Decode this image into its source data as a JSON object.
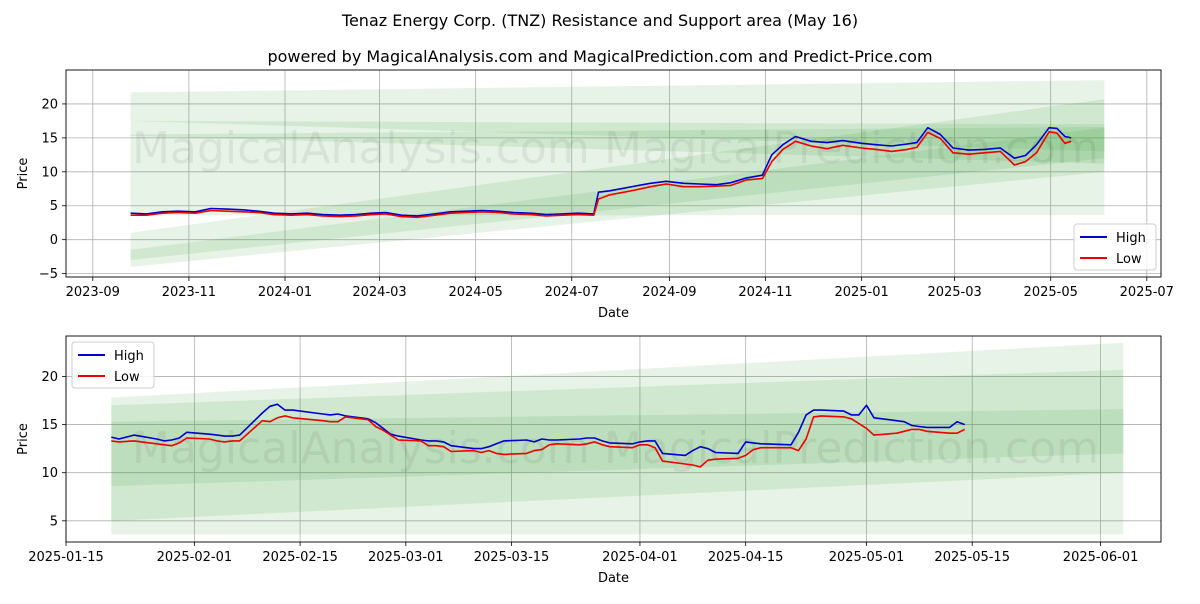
{
  "figure": {
    "title": "Tenaz Energy Corp. (TNZ) Resistance and Support area (May 16)",
    "subtitle": "powered by MagicalAnalysis.com and MagicalPrediction.com and Predict-Price.com",
    "watermarks": [
      "MagicalAnalysis.com",
      "MagicalPrediction.com"
    ]
  },
  "colors": {
    "high": "#0000cc",
    "low": "#ee0000",
    "band": "#2e9b2e",
    "grid": "#b0b0b0"
  },
  "chart_data": [
    {
      "type": "line",
      "panel": "full-history",
      "xlabel": "Date",
      "ylabel": "Price",
      "xlim": [
        "2023-08-15",
        "2025-07-10"
      ],
      "ylim": [
        -5.5,
        25
      ],
      "grid": true,
      "legend": "lower right",
      "xticks": [
        "2023-09",
        "2023-11",
        "2024-01",
        "2024-03",
        "2024-05",
        "2024-07",
        "2024-09",
        "2024-11",
        "2025-01",
        "2025-03",
        "2025-05",
        "2025-07"
      ],
      "yticks": [
        -5,
        0,
        5,
        10,
        15,
        20
      ],
      "series": [
        {
          "name": "High",
          "x": [
            "2023-09-25",
            "2023-10-05",
            "2023-10-15",
            "2023-10-25",
            "2023-11-05",
            "2023-11-15",
            "2023-11-25",
            "2023-12-05",
            "2023-12-15",
            "2023-12-25",
            "2024-01-05",
            "2024-01-15",
            "2024-01-25",
            "2024-02-05",
            "2024-02-15",
            "2024-02-25",
            "2024-03-05",
            "2024-03-15",
            "2024-03-25",
            "2024-04-05",
            "2024-04-15",
            "2024-04-25",
            "2024-05-05",
            "2024-05-15",
            "2024-05-25",
            "2024-06-05",
            "2024-06-15",
            "2024-06-25",
            "2024-07-05",
            "2024-07-15",
            "2024-07-18",
            "2024-07-25",
            "2024-08-01",
            "2024-08-10",
            "2024-08-20",
            "2024-08-30",
            "2024-09-10",
            "2024-09-20",
            "2024-10-01",
            "2024-10-10",
            "2024-10-20",
            "2024-10-30",
            "2024-11-05",
            "2024-11-12",
            "2024-11-20",
            "2024-11-30",
            "2024-12-10",
            "2024-12-20",
            "2025-01-01",
            "2025-01-10",
            "2025-01-20",
            "2025-01-30",
            "2025-02-05",
            "2025-02-12",
            "2025-02-20",
            "2025-02-28",
            "2025-03-10",
            "2025-03-20",
            "2025-03-30",
            "2025-04-08",
            "2025-04-15",
            "2025-04-22",
            "2025-04-30",
            "2025-05-05",
            "2025-05-10",
            "2025-05-14"
          ],
          "values": [
            3.9,
            3.8,
            4.1,
            4.2,
            4.1,
            4.6,
            4.5,
            4.4,
            4.2,
            3.9,
            3.8,
            3.9,
            3.7,
            3.6,
            3.7,
            3.9,
            4.0,
            3.6,
            3.5,
            3.8,
            4.1,
            4.2,
            4.3,
            4.2,
            4.0,
            3.9,
            3.7,
            3.8,
            3.9,
            3.8,
            7.0,
            7.2,
            7.5,
            7.9,
            8.3,
            8.6,
            8.3,
            8.2,
            8.1,
            8.4,
            9.1,
            9.5,
            12.5,
            14.0,
            15.2,
            14.5,
            14.3,
            14.6,
            14.2,
            14.0,
            13.8,
            14.1,
            14.3,
            16.5,
            15.5,
            13.5,
            13.2,
            13.3,
            13.5,
            12.0,
            12.4,
            14.0,
            16.5,
            16.4,
            15.2,
            15.0
          ]
        },
        {
          "name": "Low",
          "x": [
            "2023-09-25",
            "2023-10-05",
            "2023-10-15",
            "2023-10-25",
            "2023-11-05",
            "2023-11-15",
            "2023-11-25",
            "2023-12-05",
            "2023-12-15",
            "2023-12-25",
            "2024-01-05",
            "2024-01-15",
            "2024-01-25",
            "2024-02-05",
            "2024-02-15",
            "2024-02-25",
            "2024-03-05",
            "2024-03-15",
            "2024-03-25",
            "2024-04-05",
            "2024-04-15",
            "2024-04-25",
            "2024-05-05",
            "2024-05-15",
            "2024-05-25",
            "2024-06-05",
            "2024-06-15",
            "2024-06-25",
            "2024-07-05",
            "2024-07-15",
            "2024-07-18",
            "2024-07-25",
            "2024-08-01",
            "2024-08-10",
            "2024-08-20",
            "2024-08-30",
            "2024-09-10",
            "2024-09-20",
            "2024-10-01",
            "2024-10-10",
            "2024-10-20",
            "2024-10-30",
            "2024-11-05",
            "2024-11-12",
            "2024-11-20",
            "2024-11-30",
            "2024-12-10",
            "2024-12-20",
            "2025-01-01",
            "2025-01-10",
            "2025-01-20",
            "2025-01-30",
            "2025-02-05",
            "2025-02-12",
            "2025-02-20",
            "2025-02-28",
            "2025-03-10",
            "2025-03-20",
            "2025-03-30",
            "2025-04-08",
            "2025-04-15",
            "2025-04-22",
            "2025-04-30",
            "2025-05-05",
            "2025-05-10",
            "2025-05-14"
          ],
          "values": [
            3.6,
            3.6,
            3.9,
            4.0,
            3.9,
            4.3,
            4.2,
            4.1,
            4.0,
            3.7,
            3.6,
            3.7,
            3.5,
            3.4,
            3.5,
            3.7,
            3.8,
            3.4,
            3.3,
            3.6,
            3.9,
            4.0,
            4.1,
            4.0,
            3.8,
            3.7,
            3.5,
            3.6,
            3.7,
            3.6,
            6.0,
            6.6,
            6.9,
            7.3,
            7.8,
            8.2,
            7.8,
            7.8,
            7.9,
            8.0,
            8.8,
            9.0,
            11.5,
            13.3,
            14.5,
            13.8,
            13.4,
            13.9,
            13.5,
            13.3,
            13.0,
            13.3,
            13.6,
            15.8,
            14.9,
            12.8,
            12.6,
            12.8,
            13.0,
            11.0,
            11.5,
            12.8,
            15.9,
            15.7,
            14.2,
            14.5
          ]
        }
      ],
      "bands": [
        {
          "x": [
            "2023-09-25",
            "2025-06-04"
          ],
          "lower": [
            -4.0,
            10.0
          ],
          "upper": [
            1.0,
            20.7
          ]
        },
        {
          "x": [
            "2023-09-25",
            "2025-06-04"
          ],
          "lower": [
            15.3,
            11.2
          ],
          "upper": [
            21.7,
            23.5
          ]
        },
        {
          "x": [
            "2023-09-25",
            "2025-06-04"
          ],
          "lower": [
            3.6,
            3.6
          ],
          "upper": [
            15.5,
            16.6
          ]
        },
        {
          "x": [
            "2023-09-25",
            "2025-06-04"
          ],
          "lower": [
            -3.0,
            12.0
          ],
          "upper": [
            -1.5,
            16.5
          ]
        },
        {
          "x": [
            "2023-09-25",
            "2025-06-04"
          ],
          "lower": [
            17.5,
            13.0
          ],
          "upper": [
            17.5,
            17.0
          ]
        }
      ]
    },
    {
      "type": "line",
      "panel": "recent",
      "xlabel": "Date",
      "ylabel": "Price",
      "xlim": [
        "2025-01-15",
        "2025-06-09"
      ],
      "ylim": [
        2.8,
        24.2
      ],
      "grid": true,
      "legend": "upper left",
      "xticks": [
        "2025-01-15",
        "2025-02-01",
        "2025-02-15",
        "2025-03-01",
        "2025-03-15",
        "2025-04-01",
        "2025-04-15",
        "2025-05-01",
        "2025-05-15",
        "2025-06-01"
      ],
      "yticks": [
        5,
        10,
        15,
        20
      ],
      "series": [
        {
          "name": "High",
          "x": [
            "2025-01-21",
            "2025-01-22",
            "2025-01-24",
            "2025-01-27",
            "2025-01-28",
            "2025-01-29",
            "2025-01-30",
            "2025-01-31",
            "2025-02-03",
            "2025-02-04",
            "2025-02-05",
            "2025-02-06",
            "2025-02-07",
            "2025-02-10",
            "2025-02-11",
            "2025-02-12",
            "2025-02-13",
            "2025-02-14",
            "2025-02-18",
            "2025-02-19",
            "2025-02-20",
            "2025-02-21",
            "2025-02-24",
            "2025-02-25",
            "2025-02-26",
            "2025-02-27",
            "2025-02-28",
            "2025-03-03",
            "2025-03-04",
            "2025-03-05",
            "2025-03-06",
            "2025-03-07",
            "2025-03-10",
            "2025-03-11",
            "2025-03-12",
            "2025-03-13",
            "2025-03-14",
            "2025-03-17",
            "2025-03-18",
            "2025-03-19",
            "2025-03-20",
            "2025-03-21",
            "2025-03-24",
            "2025-03-25",
            "2025-03-26",
            "2025-03-27",
            "2025-03-28",
            "2025-03-31",
            "2025-04-01",
            "2025-04-02",
            "2025-04-03",
            "2025-04-04",
            "2025-04-07",
            "2025-04-08",
            "2025-04-09",
            "2025-04-10",
            "2025-04-11",
            "2025-04-14",
            "2025-04-15",
            "2025-04-16",
            "2025-04-17",
            "2025-04-21",
            "2025-04-22",
            "2025-04-23",
            "2025-04-24",
            "2025-04-25",
            "2025-04-28",
            "2025-04-29",
            "2025-04-30",
            "2025-05-01",
            "2025-05-02",
            "2025-05-05",
            "2025-05-06",
            "2025-05-07",
            "2025-05-08",
            "2025-05-09",
            "2025-05-12",
            "2025-05-13",
            "2025-05-14"
          ],
          "values": [
            13.7,
            13.5,
            13.9,
            13.5,
            13.3,
            13.4,
            13.6,
            14.2,
            14.0,
            13.9,
            13.8,
            13.8,
            13.9,
            16.2,
            16.9,
            17.1,
            16.5,
            16.5,
            16.1,
            16.0,
            16.1,
            15.9,
            15.6,
            15.2,
            14.6,
            14.0,
            13.8,
            13.4,
            13.3,
            13.3,
            13.2,
            12.8,
            12.5,
            12.5,
            12.7,
            13.0,
            13.3,
            13.4,
            13.2,
            13.5,
            13.4,
            13.4,
            13.5,
            13.6,
            13.6,
            13.3,
            13.1,
            13.0,
            13.2,
            13.3,
            13.3,
            12.0,
            11.8,
            12.3,
            12.7,
            12.5,
            12.1,
            12.0,
            13.2,
            13.1,
            13.0,
            12.9,
            14.2,
            16.0,
            16.5,
            16.5,
            16.4,
            16.0,
            16.0,
            17.0,
            15.7,
            15.4,
            15.3,
            14.9,
            14.8,
            14.7,
            14.7,
            15.3,
            15.0
          ]
        },
        {
          "name": "Low",
          "x": [
            "2025-01-21",
            "2025-01-22",
            "2025-01-24",
            "2025-01-27",
            "2025-01-28",
            "2025-01-29",
            "2025-01-30",
            "2025-01-31",
            "2025-02-03",
            "2025-02-04",
            "2025-02-05",
            "2025-02-06",
            "2025-02-07",
            "2025-02-10",
            "2025-02-11",
            "2025-02-12",
            "2025-02-13",
            "2025-02-14",
            "2025-02-18",
            "2025-02-19",
            "2025-02-20",
            "2025-02-21",
            "2025-02-24",
            "2025-02-25",
            "2025-02-26",
            "2025-02-27",
            "2025-02-28",
            "2025-03-03",
            "2025-03-04",
            "2025-03-05",
            "2025-03-06",
            "2025-03-07",
            "2025-03-10",
            "2025-03-11",
            "2025-03-12",
            "2025-03-13",
            "2025-03-14",
            "2025-03-17",
            "2025-03-18",
            "2025-03-19",
            "2025-03-20",
            "2025-03-21",
            "2025-03-24",
            "2025-03-25",
            "2025-03-26",
            "2025-03-27",
            "2025-03-28",
            "2025-03-31",
            "2025-04-01",
            "2025-04-02",
            "2025-04-03",
            "2025-04-04",
            "2025-04-07",
            "2025-04-08",
            "2025-04-09",
            "2025-04-10",
            "2025-04-11",
            "2025-04-14",
            "2025-04-15",
            "2025-04-16",
            "2025-04-17",
            "2025-04-21",
            "2025-04-22",
            "2025-04-23",
            "2025-04-24",
            "2025-04-25",
            "2025-04-28",
            "2025-04-29",
            "2025-04-30",
            "2025-05-01",
            "2025-05-02",
            "2025-05-05",
            "2025-05-06",
            "2025-05-07",
            "2025-05-08",
            "2025-05-09",
            "2025-05-12",
            "2025-05-13",
            "2025-05-14"
          ],
          "values": [
            13.3,
            13.2,
            13.3,
            13.0,
            12.9,
            12.8,
            13.1,
            13.6,
            13.5,
            13.3,
            13.2,
            13.3,
            13.3,
            15.4,
            15.3,
            15.7,
            15.9,
            15.7,
            15.4,
            15.3,
            15.3,
            15.8,
            15.5,
            14.8,
            14.4,
            13.9,
            13.4,
            13.3,
            12.8,
            12.8,
            12.7,
            12.2,
            12.3,
            12.1,
            12.3,
            12.0,
            11.9,
            12.0,
            12.3,
            12.4,
            12.9,
            13.0,
            12.9,
            13.0,
            13.2,
            12.9,
            12.7,
            12.6,
            12.9,
            12.9,
            12.6,
            11.2,
            10.9,
            10.8,
            10.6,
            11.3,
            11.4,
            11.5,
            11.8,
            12.4,
            12.6,
            12.6,
            12.3,
            13.5,
            15.8,
            15.9,
            15.8,
            15.6,
            15.1,
            14.6,
            13.9,
            14.1,
            14.3,
            14.5,
            14.5,
            14.3,
            14.1,
            14.1,
            14.5
          ]
        }
      ],
      "bands": [
        {
          "x": [
            "2025-01-21",
            "2025-06-04"
          ],
          "lower": [
            3.6,
            3.6
          ],
          "upper": [
            17.8,
            23.5
          ]
        },
        {
          "x": [
            "2025-01-21",
            "2025-06-04"
          ],
          "lower": [
            5.0,
            10.0
          ],
          "upper": [
            17.0,
            20.7
          ]
        },
        {
          "x": [
            "2025-01-21",
            "2025-06-04"
          ],
          "lower": [
            8.6,
            12.0
          ],
          "upper": [
            15.3,
            16.6
          ]
        }
      ]
    }
  ]
}
